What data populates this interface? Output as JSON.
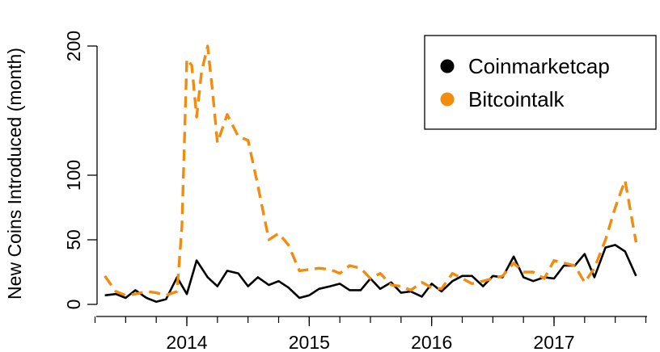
{
  "chart_data": {
    "type": "line",
    "title": "",
    "xlabel": "",
    "ylabel": "New Coins Introduced (month)",
    "xlim": [
      2013.25,
      2017.75
    ],
    "ylim": [
      0,
      200
    ],
    "x_ticks": [
      2014,
      2015,
      2016,
      2017
    ],
    "y_ticks": [
      0,
      50,
      100,
      200
    ],
    "grid": false,
    "legend_position": "top-right",
    "series": [
      {
        "name": "Coinmarketcap",
        "color": "#000000",
        "line_style": "solid",
        "points": [
          [
            2013.33,
            7
          ],
          [
            2013.42,
            8
          ],
          [
            2013.5,
            5
          ],
          [
            2013.58,
            11
          ],
          [
            2013.67,
            5
          ],
          [
            2013.75,
            2
          ],
          [
            2013.83,
            4
          ],
          [
            2013.92,
            21
          ],
          [
            2014.0,
            8
          ],
          [
            2014.08,
            34
          ],
          [
            2014.17,
            21
          ],
          [
            2014.25,
            14
          ],
          [
            2014.33,
            26
          ],
          [
            2014.42,
            24
          ],
          [
            2014.5,
            14
          ],
          [
            2014.58,
            21
          ],
          [
            2014.67,
            15
          ],
          [
            2014.75,
            18
          ],
          [
            2014.83,
            13
          ],
          [
            2014.92,
            5
          ],
          [
            2015.0,
            7
          ],
          [
            2015.08,
            12
          ],
          [
            2015.17,
            14
          ],
          [
            2015.25,
            16
          ],
          [
            2015.33,
            11
          ],
          [
            2015.42,
            11
          ],
          [
            2015.5,
            20
          ],
          [
            2015.58,
            12
          ],
          [
            2015.67,
            17
          ],
          [
            2015.75,
            9
          ],
          [
            2015.83,
            10
          ],
          [
            2015.92,
            6
          ],
          [
            2016.0,
            16
          ],
          [
            2016.08,
            10
          ],
          [
            2016.17,
            18
          ],
          [
            2016.25,
            22
          ],
          [
            2016.33,
            22
          ],
          [
            2016.42,
            14
          ],
          [
            2016.5,
            22
          ],
          [
            2016.58,
            21
          ],
          [
            2016.67,
            37
          ],
          [
            2016.75,
            21
          ],
          [
            2016.83,
            18
          ],
          [
            2016.92,
            21
          ],
          [
            2017.0,
            20
          ],
          [
            2017.08,
            30
          ],
          [
            2017.17,
            30
          ],
          [
            2017.25,
            39
          ],
          [
            2017.33,
            21
          ],
          [
            2017.42,
            44
          ],
          [
            2017.5,
            46
          ],
          [
            2017.58,
            41
          ],
          [
            2017.67,
            22
          ]
        ]
      },
      {
        "name": "Bitcointalk",
        "color": "#f28c0f",
        "line_style": "dashed",
        "points": [
          [
            2013.33,
            22
          ],
          [
            2013.42,
            10
          ],
          [
            2013.5,
            7
          ],
          [
            2013.58,
            8
          ],
          [
            2013.67,
            10
          ],
          [
            2013.75,
            9
          ],
          [
            2013.83,
            7
          ],
          [
            2013.92,
            10
          ],
          [
            2013.96,
            60
          ],
          [
            2014.0,
            190
          ],
          [
            2014.04,
            185
          ],
          [
            2014.08,
            145
          ],
          [
            2014.12,
            180
          ],
          [
            2014.17,
            200
          ],
          [
            2014.21,
            165
          ],
          [
            2014.25,
            125
          ],
          [
            2014.33,
            147
          ],
          [
            2014.42,
            130
          ],
          [
            2014.5,
            127
          ],
          [
            2014.58,
            92
          ],
          [
            2014.67,
            50
          ],
          [
            2014.75,
            55
          ],
          [
            2014.83,
            46
          ],
          [
            2014.92,
            26
          ],
          [
            2015.0,
            27
          ],
          [
            2015.08,
            28
          ],
          [
            2015.17,
            27
          ],
          [
            2015.25,
            24
          ],
          [
            2015.33,
            30
          ],
          [
            2015.42,
            28
          ],
          [
            2015.5,
            20
          ],
          [
            2015.58,
            24
          ],
          [
            2015.67,
            15
          ],
          [
            2015.75,
            14
          ],
          [
            2015.83,
            11
          ],
          [
            2015.92,
            17
          ],
          [
            2016.0,
            13
          ],
          [
            2016.08,
            12
          ],
          [
            2016.17,
            24
          ],
          [
            2016.25,
            20
          ],
          [
            2016.33,
            16
          ],
          [
            2016.42,
            18
          ],
          [
            2016.5,
            20
          ],
          [
            2016.58,
            22
          ],
          [
            2016.67,
            32
          ],
          [
            2016.75,
            25
          ],
          [
            2016.83,
            25
          ],
          [
            2016.92,
            20
          ],
          [
            2017.0,
            34
          ],
          [
            2017.08,
            32
          ],
          [
            2017.17,
            30
          ],
          [
            2017.25,
            17
          ],
          [
            2017.33,
            28
          ],
          [
            2017.42,
            50
          ],
          [
            2017.5,
            75
          ],
          [
            2017.58,
            96
          ],
          [
            2017.67,
            48
          ]
        ]
      }
    ]
  }
}
